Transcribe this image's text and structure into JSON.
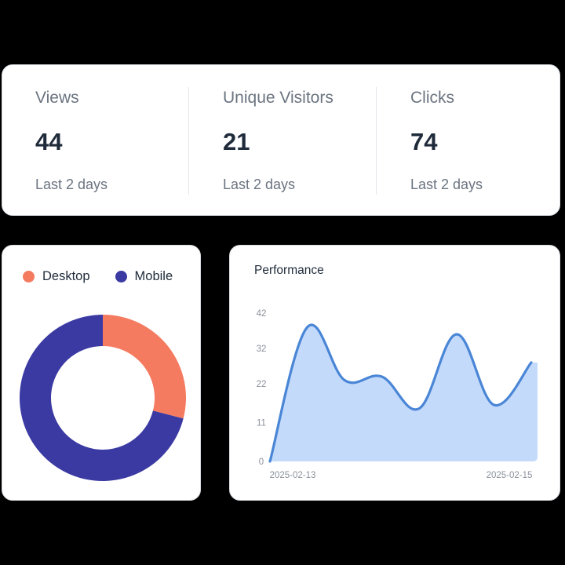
{
  "stats": [
    {
      "label": "Views",
      "value": "44",
      "sub": "Last 2 days"
    },
    {
      "label": "Unique Visitors",
      "value": "21",
      "sub": "Last 2 days"
    },
    {
      "label": "Clicks",
      "value": "74",
      "sub": "Last 2 days"
    }
  ],
  "device_chart": {
    "legend": [
      {
        "name": "Desktop",
        "color": "#f47a60"
      },
      {
        "name": "Mobile",
        "color": "#3b3aa3"
      }
    ]
  },
  "chart_data": [
    {
      "type": "pie",
      "labels": [
        "Desktop",
        "Mobile"
      ],
      "values": [
        29,
        71
      ],
      "colors": [
        "#f47a60",
        "#3b3aa3"
      ],
      "donut": true,
      "legend_position": "top"
    },
    {
      "type": "area",
      "title": "Performance",
      "x": [
        "2025-02-13",
        "",
        "",
        "",
        "",
        "",
        "",
        "2025-02-15"
      ],
      "x_tick_labels": [
        "2025-02-13",
        "2025-02-15"
      ],
      "series": [
        {
          "values": [
            0,
            38,
            23,
            24,
            15,
            36,
            16,
            28
          ],
          "color": "#4a86d6",
          "fill": "#c4dafb"
        }
      ],
      "y_ticks": [
        0,
        11,
        22,
        32,
        42
      ],
      "ylim": [
        0,
        42
      ],
      "grid": false,
      "legend": false
    }
  ]
}
